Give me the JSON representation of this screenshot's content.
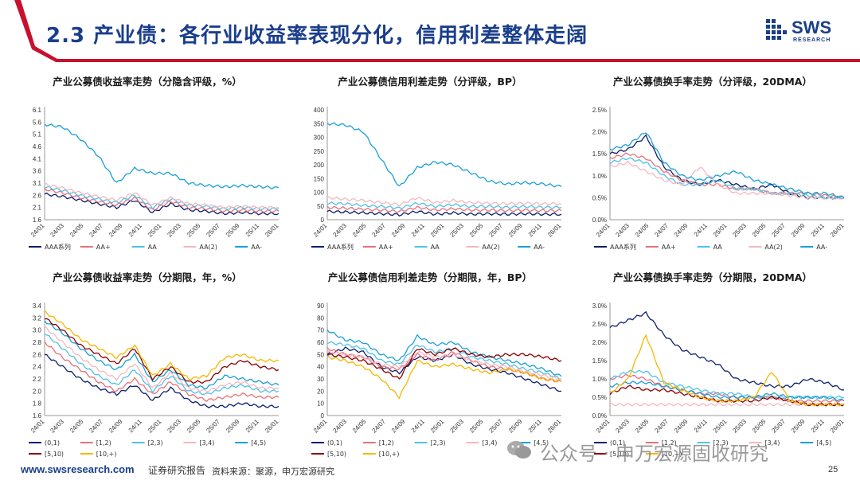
{
  "page": {
    "title": "2.3 产业债：各行业收益率表现分化，信用利差整体走阔",
    "logo_text": "SWS",
    "logo_sub": "RESEARCH",
    "footer_url": "www.swsresearch.com",
    "footer_tag": "证券研究报告",
    "footer_source": "资料来源：聚源，申万宏源研究",
    "page_number": "25",
    "watermark": "公众号 · 申万宏源固收研究",
    "accent_color": "#c8102e",
    "brand_color": "#1a3e8c"
  },
  "chart_data": [
    {
      "type": "line",
      "title": "产业公募债收益率走势（分隐含评级，%）",
      "yticks": [
        "1.6",
        "2.1",
        "2.6",
        "3.1",
        "3.6",
        "4.1",
        "4.6",
        "5.1",
        "5.6",
        "6.1"
      ],
      "ylim": [
        1.6,
        6.1
      ],
      "xticks": [
        "24/01",
        "24/03",
        "24/05",
        "24/07",
        "24/09",
        "24/11",
        "25/01",
        "25/03",
        "25/05",
        "25/07",
        "25/09",
        "25/11",
        "26/01"
      ],
      "series": [
        {
          "name": "AAA系列",
          "color": "#0d1f6b",
          "values": [
            2.65,
            2.55,
            2.4,
            2.25,
            2.1,
            2.4,
            1.9,
            2.25,
            2.0,
            1.95,
            1.85,
            1.9,
            1.85,
            1.85
          ]
        },
        {
          "name": "AA+",
          "color": "#e8717a",
          "values": [
            2.85,
            2.7,
            2.5,
            2.35,
            2.2,
            2.5,
            2.0,
            2.35,
            2.1,
            2.05,
            1.95,
            2.0,
            1.95,
            1.95
          ]
        },
        {
          "name": "AA",
          "color": "#4fc3e8",
          "values": [
            2.95,
            2.8,
            2.6,
            2.45,
            2.3,
            2.6,
            2.1,
            2.45,
            2.2,
            2.15,
            2.05,
            2.1,
            2.05,
            2.05
          ]
        },
        {
          "name": "AA(2)",
          "color": "#f4b8c0",
          "values": [
            3.05,
            2.9,
            2.7,
            2.55,
            2.4,
            2.7,
            2.2,
            2.5,
            2.25,
            2.2,
            2.1,
            2.15,
            2.1,
            2.1
          ]
        },
        {
          "name": "AA-",
          "color": "#1aa0d8",
          "values": [
            5.5,
            5.4,
            4.9,
            4.2,
            3.1,
            3.7,
            3.5,
            3.5,
            3.1,
            3.0,
            2.95,
            3.0,
            2.95,
            2.9
          ]
        }
      ]
    },
    {
      "type": "line",
      "title": "产业公募债信用利差走势（分评级，BP）",
      "yticks": [
        "0",
        "50",
        "100",
        "150",
        "200",
        "250",
        "300",
        "350",
        "400"
      ],
      "ylim": [
        0,
        400
      ],
      "xticks": [
        "24/01",
        "24/03",
        "24/05",
        "24/07",
        "24/09",
        "24/11",
        "25/01",
        "25/03",
        "25/05",
        "25/07",
        "25/09",
        "25/11",
        "26/01"
      ],
      "series": [
        {
          "name": "AAA系列",
          "color": "#0d1f6b",
          "values": [
            30,
            28,
            25,
            22,
            18,
            30,
            20,
            25,
            20,
            22,
            20,
            22,
            20,
            20
          ]
        },
        {
          "name": "AA+",
          "color": "#e8717a",
          "values": [
            45,
            42,
            38,
            35,
            30,
            45,
            35,
            40,
            35,
            35,
            33,
            35,
            33,
            33
          ]
        },
        {
          "name": "AA",
          "color": "#4fc3e8",
          "values": [
            60,
            58,
            52,
            48,
            42,
            60,
            48,
            55,
            48,
            48,
            45,
            48,
            45,
            45
          ]
        },
        {
          "name": "AA(2)",
          "color": "#f4b8c0",
          "values": [
            80,
            75,
            70,
            62,
            55,
            80,
            62,
            70,
            62,
            60,
            58,
            60,
            58,
            58
          ]
        },
        {
          "name": "AA-",
          "color": "#1aa0d8",
          "values": [
            350,
            345,
            320,
            220,
            120,
            190,
            210,
            200,
            170,
            140,
            130,
            135,
            130,
            120
          ]
        }
      ]
    },
    {
      "type": "line",
      "title": "产业公募债换手率走势（分评级，20DMA）",
      "yticks": [
        "0.0%",
        "0.5%",
        "1.0%",
        "1.5%",
        "2.0%",
        "2.5%"
      ],
      "ylim": [
        0,
        2.5
      ],
      "xticks": [
        "24/01",
        "24/03",
        "24/05",
        "24/07",
        "24/09",
        "24/11",
        "25/01",
        "25/03",
        "25/05",
        "25/07",
        "25/09",
        "25/11",
        "26/01"
      ],
      "series": [
        {
          "name": "AAA系列",
          "color": "#0d1f6b",
          "values": [
            1.5,
            1.6,
            1.9,
            1.2,
            0.9,
            0.8,
            0.9,
            0.8,
            0.7,
            0.8,
            0.6,
            0.5,
            0.5,
            0.5
          ]
        },
        {
          "name": "AA+",
          "color": "#e8717a",
          "values": [
            1.4,
            1.5,
            1.4,
            1.1,
            0.9,
            0.8,
            0.8,
            0.7,
            0.7,
            0.6,
            0.6,
            0.6,
            0.55,
            0.5
          ]
        },
        {
          "name": "AA",
          "color": "#4fc3e8",
          "values": [
            1.3,
            1.4,
            1.3,
            1.0,
            0.8,
            0.8,
            0.9,
            0.7,
            0.7,
            0.6,
            0.6,
            0.55,
            0.5,
            0.5
          ]
        },
        {
          "name": "AA(2)",
          "color": "#f4b8c0",
          "values": [
            1.2,
            1.3,
            1.1,
            0.9,
            0.8,
            1.2,
            0.8,
            0.6,
            0.6,
            0.6,
            0.55,
            0.5,
            0.5,
            0.5
          ]
        },
        {
          "name": "AA-",
          "color": "#1aa0d8",
          "values": [
            1.6,
            1.7,
            2.0,
            1.3,
            1.0,
            0.9,
            1.0,
            1.1,
            0.9,
            0.8,
            0.7,
            0.6,
            0.6,
            0.5
          ]
        }
      ]
    },
    {
      "type": "line",
      "title": "产业公募债收益率走势（分期限，年，%）",
      "yticks": [
        "1.6",
        "1.8",
        "2.0",
        "2.2",
        "2.4",
        "2.6",
        "2.8",
        "3.0",
        "3.2",
        "3.4"
      ],
      "ylim": [
        1.6,
        3.4
      ],
      "xticks": [
        "24/01",
        "24/03",
        "24/05",
        "24/07",
        "24/09",
        "24/11",
        "25/01",
        "25/03",
        "25/05",
        "25/07",
        "25/09",
        "25/11",
        "26/01"
      ],
      "series": [
        {
          "name": "(0,1)",
          "color": "#0d1f6b",
          "values": [
            2.6,
            2.4,
            2.2,
            2.05,
            1.95,
            2.1,
            1.85,
            2.05,
            1.85,
            1.75,
            1.75,
            1.8,
            1.75,
            1.75
          ]
        },
        {
          "name": "[1,2)",
          "color": "#e8717a",
          "values": [
            2.8,
            2.55,
            2.35,
            2.15,
            2.0,
            2.2,
            1.95,
            2.15,
            1.95,
            1.85,
            1.9,
            1.95,
            1.9,
            1.9
          ]
        },
        {
          "name": "[2,3)",
          "color": "#4fc3e8",
          "values": [
            2.95,
            2.7,
            2.45,
            2.25,
            2.1,
            2.35,
            2.0,
            2.25,
            2.0,
            1.95,
            2.05,
            2.1,
            2.0,
            2.0
          ]
        },
        {
          "name": "[3,4)",
          "color": "#f4b8c0",
          "values": [
            3.05,
            2.8,
            2.55,
            2.35,
            2.2,
            2.45,
            2.05,
            2.3,
            2.05,
            2.0,
            2.1,
            2.15,
            2.05,
            2.05
          ]
        },
        {
          "name": "[4,5)",
          "color": "#1aa0d8",
          "values": [
            3.15,
            2.95,
            2.7,
            2.5,
            2.35,
            2.6,
            2.15,
            2.35,
            2.1,
            2.05,
            2.25,
            2.2,
            2.15,
            2.1
          ]
        },
        {
          "name": "[5,10)",
          "color": "#8b0000",
          "values": [
            3.2,
            3.0,
            2.75,
            2.6,
            2.45,
            2.7,
            2.2,
            2.4,
            2.15,
            2.15,
            2.4,
            2.5,
            2.4,
            2.35
          ]
        },
        {
          "name": "[10,+)",
          "color": "#f5b800",
          "values": [
            3.3,
            3.1,
            2.85,
            2.7,
            2.55,
            2.75,
            2.25,
            2.45,
            2.2,
            2.25,
            2.55,
            2.6,
            2.5,
            2.5
          ]
        }
      ]
    },
    {
      "type": "line",
      "title": "产业公募债信用利差走势（分期限，年，BP）",
      "yticks": [
        "0",
        "10",
        "20",
        "30",
        "40",
        "50",
        "60",
        "70",
        "80",
        "90"
      ],
      "ylim": [
        0,
        90
      ],
      "xticks": [
        "24/01",
        "24/03",
        "24/05",
        "24/07",
        "24/09",
        "24/11",
        "25/01",
        "25/03",
        "25/05",
        "25/07",
        "25/09",
        "25/11",
        "26/01"
      ],
      "series": [
        {
          "name": "(0,1)",
          "color": "#0d1f6b",
          "values": [
            50,
            55,
            52,
            40,
            35,
            48,
            45,
            50,
            42,
            38,
            35,
            30,
            25,
            20
          ]
        },
        {
          "name": "[1,2)",
          "color": "#e8717a",
          "values": [
            55,
            50,
            48,
            40,
            38,
            50,
            45,
            52,
            45,
            40,
            38,
            35,
            30,
            28
          ]
        },
        {
          "name": "[2,3)",
          "color": "#4fc3e8",
          "values": [
            60,
            58,
            55,
            45,
            42,
            58,
            52,
            55,
            48,
            45,
            42,
            38,
            35,
            30
          ]
        },
        {
          "name": "[3,4)",
          "color": "#f4b8c0",
          "values": [
            52,
            50,
            48,
            42,
            40,
            52,
            48,
            50,
            45,
            42,
            40,
            36,
            33,
            30
          ]
        },
        {
          "name": "[4,5)",
          "color": "#1aa0d8",
          "values": [
            70,
            62,
            60,
            50,
            45,
            65,
            58,
            60,
            52,
            48,
            45,
            42,
            38,
            32
          ]
        },
        {
          "name": "[5,10)",
          "color": "#8b0000",
          "values": [
            50,
            48,
            45,
            38,
            30,
            55,
            50,
            55,
            50,
            48,
            50,
            50,
            48,
            45
          ]
        },
        {
          "name": "[10,+)",
          "color": "#f5b800",
          "values": [
            48,
            45,
            40,
            30,
            15,
            45,
            40,
            42,
            38,
            35,
            38,
            35,
            30,
            28
          ]
        }
      ]
    },
    {
      "type": "line",
      "title": "产业公募债换手率走势（分期限，20DMA）",
      "yticks": [
        "0.0%",
        "0.5%",
        "1.0%",
        "1.5%",
        "2.0%",
        "2.5%",
        "3.0%"
      ],
      "ylim": [
        0,
        3.0
      ],
      "xticks": [
        "24/01",
        "24/03",
        "24/05",
        "24/07",
        "24/09",
        "24/11",
        "25/01",
        "25/03",
        "25/05",
        "25/07",
        "25/09",
        "25/11",
        "26/01"
      ],
      "series": [
        {
          "name": "(0,1)",
          "color": "#0d1f6b",
          "values": [
            2.4,
            2.6,
            2.8,
            2.2,
            1.8,
            1.6,
            1.4,
            1.0,
            0.9,
            0.8,
            0.8,
            1.0,
            0.9,
            0.7
          ]
        },
        {
          "name": "[1,2)",
          "color": "#e8717a",
          "values": [
            1.0,
            1.1,
            1.0,
            0.8,
            0.7,
            0.6,
            0.6,
            0.5,
            0.5,
            0.5,
            0.4,
            0.4,
            0.4,
            0.4
          ]
        },
        {
          "name": "[2,3)",
          "color": "#4fc3e8",
          "values": [
            1.0,
            1.2,
            1.2,
            0.9,
            0.8,
            0.7,
            0.6,
            0.6,
            0.5,
            0.5,
            0.5,
            0.5,
            0.5,
            0.5
          ]
        },
        {
          "name": "[3,4)",
          "color": "#f4b8c0",
          "values": [
            0.3,
            0.3,
            0.3,
            0.3,
            0.3,
            0.3,
            0.3,
            0.3,
            0.3,
            0.3,
            0.3,
            0.3,
            0.3,
            0.3
          ]
        },
        {
          "name": "[4,5)",
          "color": "#1aa0d8",
          "values": [
            0.8,
            0.9,
            0.9,
            0.8,
            0.7,
            0.6,
            0.5,
            0.5,
            0.5,
            0.6,
            0.5,
            0.5,
            0.5,
            0.4
          ]
        },
        {
          "name": "[5,10)",
          "color": "#8b0000",
          "values": [
            0.6,
            0.8,
            0.7,
            0.7,
            0.6,
            0.5,
            0.4,
            0.4,
            0.4,
            0.5,
            0.4,
            0.3,
            0.3,
            0.3
          ]
        },
        {
          "name": "[10,+)",
          "color": "#f5b800",
          "values": [
            0.6,
            1.0,
            2.2,
            0.9,
            0.7,
            0.5,
            0.4,
            0.4,
            0.5,
            1.2,
            0.4,
            0.3,
            0.3,
            0.3
          ]
        }
      ]
    }
  ]
}
